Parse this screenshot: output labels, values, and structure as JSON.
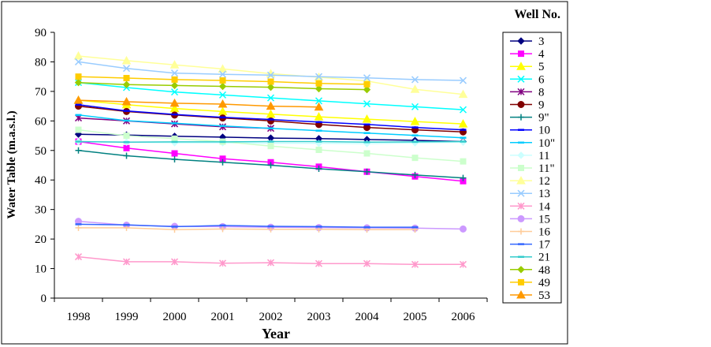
{
  "chart_data": {
    "type": "line",
    "title": "",
    "xlabel": "Year",
    "ylabel": "Water Table (m.a.s.l.)",
    "legend_title": "Well No.",
    "legend_position": "right",
    "grid": false,
    "ylim": [
      0,
      90
    ],
    "yticks": [
      "0",
      "10",
      "20",
      "30",
      "40",
      "50",
      "60",
      "70",
      "80",
      "90"
    ],
    "x": [
      "1998",
      "1999",
      "2000",
      "2001",
      "2002",
      "2003",
      "2004",
      "2005",
      "2006"
    ],
    "series": [
      {
        "name": "3",
        "color": "#000080",
        "marker": "diamond",
        "values": [
          55.5,
          55.2,
          54.8,
          54.5,
          54.2,
          54.0,
          53.7,
          53.4,
          53.0
        ]
      },
      {
        "name": "4",
        "color": "#FF00FF",
        "marker": "square",
        "values": [
          53.0,
          50.8,
          49.0,
          47.2,
          46.0,
          44.5,
          42.8,
          41.2,
          39.6
        ]
      },
      {
        "name": "5",
        "color": "#FFFF00",
        "marker": "triangle",
        "values": [
          67.0,
          65.5,
          64.2,
          63.2,
          62.3,
          61.4,
          60.6,
          59.8,
          59.0
        ]
      },
      {
        "name": "6",
        "color": "#00FFFF",
        "marker": "x",
        "values": [
          73.0,
          71.3,
          69.8,
          68.8,
          67.8,
          66.8,
          65.8,
          64.8,
          63.8
        ]
      },
      {
        "name": "8",
        "color": "#800080",
        "marker": "asterisk",
        "values": [
          61.0,
          60.0,
          59.0,
          58.0,
          57.5,
          null,
          null,
          null,
          null
        ]
      },
      {
        "name": "9",
        "color": "#800000",
        "marker": "circle",
        "values": [
          65.0,
          63.2,
          62.0,
          61.0,
          60.0,
          58.8,
          57.8,
          57.0,
          56.3
        ]
      },
      {
        "name": "9\"",
        "color": "#008080",
        "marker": "plus",
        "values": [
          50.0,
          48.2,
          47.0,
          46.0,
          45.0,
          43.8,
          42.8,
          41.7,
          40.7
        ]
      },
      {
        "name": "10",
        "color": "#0000FF",
        "marker": "dash",
        "values": [
          65.5,
          63.4,
          62.2,
          61.2,
          60.5,
          59.6,
          58.8,
          57.8,
          57.0
        ]
      },
      {
        "name": "10\"",
        "color": "#00CCFF",
        "marker": "dash",
        "values": [
          62.0,
          60.1,
          59.2,
          58.3,
          57.5,
          56.7,
          55.9,
          55.1,
          54.3
        ]
      },
      {
        "name": "11",
        "color": "#CCFFFF",
        "marker": "diamond",
        "values": [
          53.0,
          52.8,
          52.6,
          52.6,
          52.4,
          52.4,
          52.3,
          52.6,
          52.8
        ]
      },
      {
        "name": "11\"",
        "color": "#CCFFCC",
        "marker": "square",
        "values": [
          57.0,
          55.0,
          54.0,
          53.0,
          51.5,
          50.2,
          49.0,
          47.5,
          46.3
        ]
      },
      {
        "name": "12",
        "color": "#FFFF99",
        "marker": "triangle",
        "values": [
          82.0,
          80.4,
          79.0,
          77.6,
          76.0,
          74.8,
          73.5,
          70.7,
          69.0
        ]
      },
      {
        "name": "13",
        "color": "#99CCFF",
        "marker": "x",
        "values": [
          80.0,
          77.8,
          76.2,
          75.8,
          75.5,
          75.0,
          74.6,
          74.0,
          73.7
        ]
      },
      {
        "name": "14",
        "color": "#FF99CC",
        "marker": "asterisk",
        "values": [
          14.0,
          12.3,
          12.3,
          11.8,
          12.0,
          11.7,
          11.7,
          11.4,
          11.4
        ]
      },
      {
        "name": "15",
        "color": "#CC99FF",
        "marker": "circle",
        "values": [
          26.0,
          24.7,
          24.3,
          24.2,
          24.0,
          23.9,
          23.8,
          23.7,
          23.4
        ]
      },
      {
        "name": "16",
        "color": "#FFCC99",
        "marker": "plus",
        "values": [
          23.8,
          23.8,
          23.2,
          23.4,
          23.3,
          23.3,
          23.2,
          23.2,
          null
        ]
      },
      {
        "name": "17",
        "color": "#3366FF",
        "marker": "dash",
        "values": [
          25.0,
          24.8,
          24.2,
          24.6,
          24.3,
          24.2,
          24.0,
          24.0,
          null
        ]
      },
      {
        "name": "21",
        "color": "#33CCCC",
        "marker": "dash",
        "values": [
          53.0,
          52.8,
          52.9,
          52.9,
          53.0,
          53.0,
          52.8,
          52.9,
          53.0
        ]
      },
      {
        "name": "48",
        "color": "#99CC00",
        "marker": "diamond",
        "values": [
          73.0,
          72.3,
          72.0,
          71.7,
          71.4,
          70.9,
          70.6,
          null,
          null
        ]
      },
      {
        "name": "49",
        "color": "#FFCC00",
        "marker": "square",
        "values": [
          75.0,
          74.5,
          74.0,
          73.7,
          73.3,
          72.7,
          72.4,
          null,
          null
        ]
      },
      {
        "name": "53",
        "color": "#FF9900",
        "marker": "triangle",
        "values": [
          67.0,
          66.5,
          66.0,
          65.7,
          65.0,
          64.7,
          null,
          null,
          null
        ]
      }
    ]
  }
}
